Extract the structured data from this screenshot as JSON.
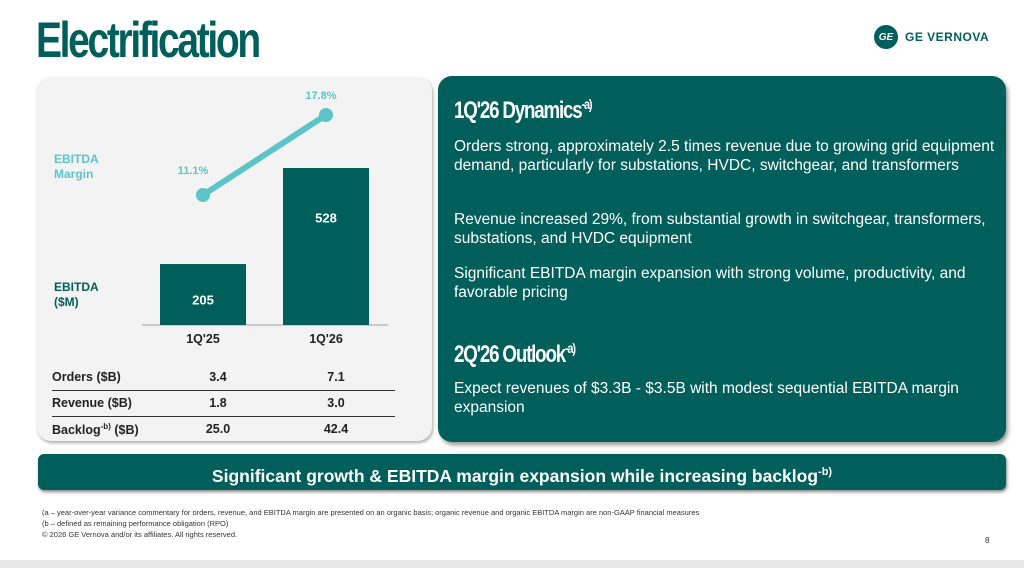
{
  "title": "Electrification",
  "logo": {
    "text": "GE VERNOVA",
    "mark": "GE"
  },
  "chart_data": {
    "type": "bar",
    "categories": [
      "1Q'25",
      "1Q'26"
    ],
    "series": [
      {
        "name": "EBITDA ($M)",
        "type": "bar",
        "values": [
          205,
          528
        ],
        "labels": [
          "205",
          "528"
        ],
        "color": "#005e5b"
      },
      {
        "name": "EBITDA Margin",
        "type": "line",
        "values": [
          11.1,
          17.8
        ],
        "labels": [
          "11.1%",
          "17.8%"
        ],
        "color": "#5bc4c8"
      }
    ],
    "labels": {
      "margin_line1": "EBITDA",
      "margin_line2": "Margin",
      "ebitda_line1": "EBITDA",
      "ebitda_line2": "($M)"
    }
  },
  "table": {
    "rows": [
      {
        "label": "Orders ($B)",
        "v1": "3.4",
        "v2": "7.1"
      },
      {
        "label": "Revenue ($B)",
        "v1": "1.8",
        "v2": "3.0"
      },
      {
        "label": "Backlog",
        "sup": "-b)",
        "label_suffix": " ($B)",
        "v1": "25.0",
        "v2": "42.4"
      }
    ]
  },
  "dynamics": {
    "heading": "1Q'26 Dynamics",
    "sup": "-a)",
    "bullets": [
      "Orders strong, approximately 2.5 times revenue due to growing grid equipment demand, particularly for substations, HVDC, switchgear, and transformers",
      "Revenue increased 29%, from substantial growth in switchgear, transformers, substations, and HVDC equipment",
      "Significant EBITDA margin expansion with strong volume, productivity, and favorable pricing"
    ]
  },
  "outlook": {
    "heading": "2Q'26 Outlook",
    "sup": "-a)",
    "text": "Expect revenues of $3.3B - $3.5B with modest sequential EBITDA margin expansion"
  },
  "banner": {
    "text": "Significant growth & EBITDA margin expansion while increasing backlog",
    "sup": "-b)"
  },
  "footnotes": [
    "(a – year-over-year variance commentary for orders, revenue, and EBITDA margin are presented on an organic basis; organic revenue and organic EBITDA margin are non-GAAP financial measures",
    "(b – defined as remaining performance obligation (RPO)",
    "© 2026 GE Vernova and/or its affiliates. All rights reserved."
  ],
  "page_number": "8"
}
